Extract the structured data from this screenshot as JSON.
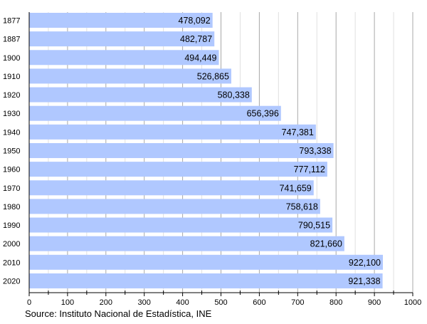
{
  "chart_data": {
    "type": "bar",
    "orientation": "horizontal",
    "categories": [
      "1877",
      "1887",
      "1900",
      "1910",
      "1920",
      "1930",
      "1940",
      "1950",
      "1960",
      "1970",
      "1980",
      "1990",
      "2000",
      "2010",
      "2020"
    ],
    "values": [
      478092,
      482787,
      494449,
      526865,
      580338,
      656396,
      747381,
      793338,
      777112,
      741659,
      758618,
      790515,
      821660,
      922100,
      921338
    ],
    "data_labels": [
      "478,092",
      "482,787",
      "494,449",
      "526,865",
      "580,338",
      "656,396",
      "747,381",
      "793,338",
      "777,112",
      "741,659",
      "758,618",
      "790,515",
      "821,660",
      "922,100",
      "921,338"
    ],
    "x_ticks": [
      "0",
      "100",
      "200",
      "300",
      "400",
      "500",
      "600",
      "700",
      "800",
      "900",
      "1000"
    ],
    "xlim": [
      0,
      1000000
    ],
    "x_tick_unit": 1000,
    "grid": "vertical",
    "bar_color": "#b0c8ff",
    "source": "Source: Instituto Nacional de Estadística, INE"
  }
}
